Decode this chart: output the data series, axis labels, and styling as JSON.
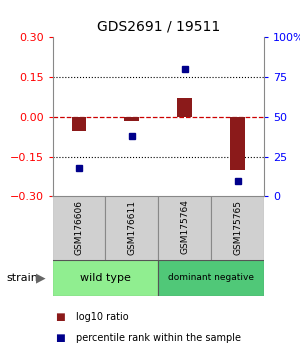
{
  "title": "GDS2691 / 19511",
  "samples": [
    "GSM176606",
    "GSM176611",
    "GSM175764",
    "GSM175765"
  ],
  "log10_ratio": [
    -0.055,
    -0.015,
    0.07,
    -0.2
  ],
  "percentile_rank": [
    18,
    38,
    80,
    10
  ],
  "groups": [
    {
      "label": "wild type",
      "samples": [
        0,
        1
      ],
      "color": "#90ee90"
    },
    {
      "label": "dominant negative",
      "samples": [
        2,
        3
      ],
      "color": "#50c878"
    }
  ],
  "ylim": [
    -0.3,
    0.3
  ],
  "right_ylim": [
    0,
    100
  ],
  "yticks_left": [
    -0.3,
    -0.15,
    0,
    0.15,
    0.3
  ],
  "yticks_right": [
    0,
    25,
    50,
    75,
    100
  ],
  "bar_color": "#8b1a1a",
  "dot_color": "#00008b",
  "zero_line_color": "#cc0000",
  "background_color": "#ffffff",
  "legend_red_label": "log10 ratio",
  "legend_blue_label": "percentile rank within the sample",
  "strain_label": "strain",
  "bar_width": 0.28
}
